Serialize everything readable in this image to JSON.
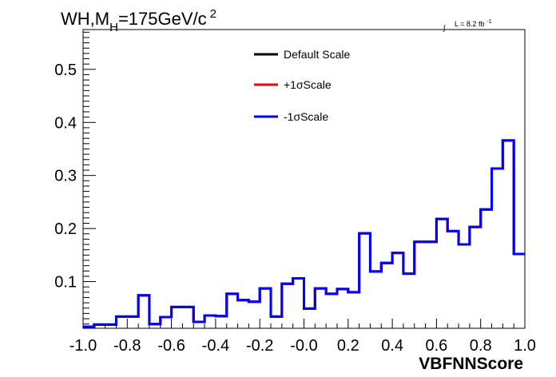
{
  "chart_data": {
    "type": "line",
    "title": "WH,M",
    "title_sub": "H",
    "title_rest": "=175GeV/c",
    "title_sup": "2",
    "lumi_integral": "∫",
    "lumi_text": "L = 8.2 fb",
    "lumi_sup": "-1",
    "xlabel": "VBFNNScore",
    "ylabel": "",
    "xlim": [
      -1.0,
      1.0
    ],
    "ylim": [
      0.012,
      0.575
    ],
    "x_ticks": [
      -1.0,
      -0.8,
      -0.6,
      -0.4,
      -0.2,
      0.0,
      0.2,
      0.4,
      0.6,
      0.8,
      1.0
    ],
    "x_tick_labels": [
      "-1.0",
      "-0.8",
      "-0.6",
      "-0.4",
      "-0.2",
      "-0.0",
      "0.2",
      "0.4",
      "0.6",
      "0.8",
      "1.0"
    ],
    "y_ticks": [
      0.1,
      0.2,
      0.3,
      0.4,
      0.5
    ],
    "y_tick_labels": [
      "0.1",
      "0.2",
      "0.3",
      "0.4",
      "0.5"
    ],
    "legend_placement": "top-center",
    "bin_edges": [
      -1.0,
      -0.95,
      -0.9,
      -0.85,
      -0.8,
      -0.75,
      -0.7,
      -0.65,
      -0.6,
      -0.55,
      -0.5,
      -0.45,
      -0.4,
      -0.35,
      -0.3,
      -0.25,
      -0.2,
      -0.15,
      -0.1,
      -0.05,
      0.0,
      0.05,
      0.1,
      0.15,
      0.2,
      0.25,
      0.3,
      0.35,
      0.4,
      0.45,
      0.5,
      0.55,
      0.6,
      0.65,
      0.7,
      0.75,
      0.8,
      0.85,
      0.9,
      0.95,
      1.0
    ],
    "series": [
      {
        "name": "Default Scale",
        "color": "#000000",
        "values": [
          0.015,
          0.019,
          0.019,
          0.034,
          0.034,
          0.074,
          0.02,
          0.033,
          0.052,
          0.052,
          0.024,
          0.036,
          0.035,
          0.077,
          0.065,
          0.062,
          0.087,
          0.034,
          0.096,
          0.106,
          0.049,
          0.087,
          0.077,
          0.086,
          0.08,
          0.191,
          0.119,
          0.135,
          0.154,
          0.115,
          0.175,
          0.175,
          0.218,
          0.195,
          0.17,
          0.203,
          0.236,
          0.313,
          0.366,
          0.152
        ]
      },
      {
        "name": "+1σScale",
        "color": "#ff0000",
        "values": [
          0.015,
          0.019,
          0.019,
          0.034,
          0.034,
          0.074,
          0.02,
          0.033,
          0.052,
          0.052,
          0.024,
          0.036,
          0.035,
          0.077,
          0.065,
          0.062,
          0.087,
          0.034,
          0.096,
          0.106,
          0.049,
          0.087,
          0.077,
          0.086,
          0.08,
          0.191,
          0.119,
          0.135,
          0.154,
          0.115,
          0.175,
          0.175,
          0.218,
          0.195,
          0.17,
          0.203,
          0.236,
          0.313,
          0.366,
          0.152
        ]
      },
      {
        "name": "-1σScale",
        "color": "#0000ff",
        "values": [
          0.015,
          0.019,
          0.019,
          0.034,
          0.034,
          0.074,
          0.02,
          0.033,
          0.052,
          0.052,
          0.024,
          0.036,
          0.035,
          0.077,
          0.065,
          0.062,
          0.087,
          0.034,
          0.096,
          0.106,
          0.049,
          0.087,
          0.077,
          0.086,
          0.08,
          0.191,
          0.119,
          0.135,
          0.154,
          0.115,
          0.175,
          0.175,
          0.218,
          0.195,
          0.17,
          0.203,
          0.236,
          0.313,
          0.366,
          0.152
        ]
      }
    ]
  }
}
